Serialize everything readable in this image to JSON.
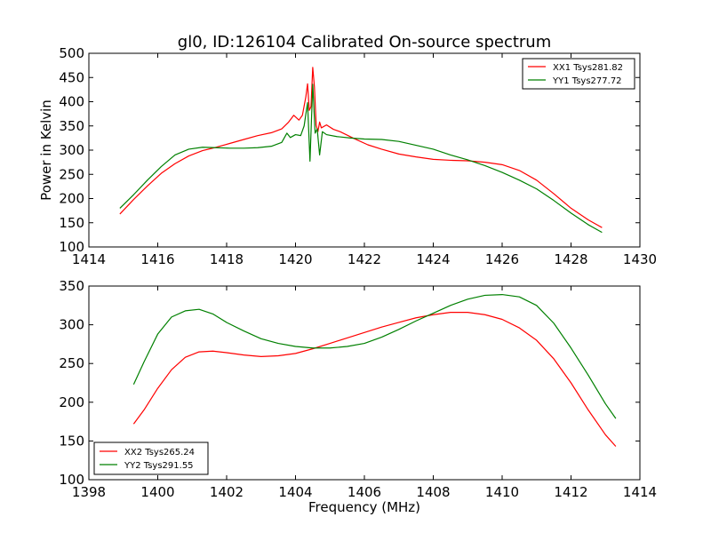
{
  "chart_data": [
    {
      "type": "line",
      "title": "gl0, ID:126104 Calibrated On-source spectrum",
      "xlabel": "",
      "ylabel": "Power in Kelvin",
      "xlim": [
        1414,
        1430
      ],
      "ylim": [
        100,
        500
      ],
      "xticks": [
        1414,
        1416,
        1418,
        1420,
        1422,
        1424,
        1426,
        1428,
        1430
      ],
      "yticks": [
        100,
        150,
        200,
        250,
        300,
        350,
        400,
        450,
        500
      ],
      "legend_position": "top-right",
      "series": [
        {
          "name": "XX1 Tsys281.82",
          "color": "#ff0000",
          "points": [
            [
              1414.9,
              168
            ],
            [
              1415.3,
              198
            ],
            [
              1415.7,
              226
            ],
            [
              1416.1,
              252
            ],
            [
              1416.5,
              272
            ],
            [
              1416.9,
              288
            ],
            [
              1417.3,
              299
            ],
            [
              1417.7,
              306
            ],
            [
              1418.1,
              314
            ],
            [
              1418.5,
              322
            ],
            [
              1418.9,
              330
            ],
            [
              1419.3,
              336
            ],
            [
              1419.6,
              344
            ],
            [
              1419.8,
              358
            ],
            [
              1419.95,
              372
            ],
            [
              1420.1,
              362
            ],
            [
              1420.2,
              372
            ],
            [
              1420.3,
              410
            ],
            [
              1420.35,
              437
            ],
            [
              1420.4,
              382
            ],
            [
              1420.45,
              390
            ],
            [
              1420.5,
              471
            ],
            [
              1420.55,
              430
            ],
            [
              1420.6,
              352
            ],
            [
              1420.65,
              338
            ],
            [
              1420.7,
              358
            ],
            [
              1420.75,
              346
            ],
            [
              1420.9,
              352
            ],
            [
              1421.1,
              343
            ],
            [
              1421.3,
              338
            ],
            [
              1421.7,
              324
            ],
            [
              1422.1,
              311
            ],
            [
              1422.5,
              302
            ],
            [
              1423.0,
              292
            ],
            [
              1423.5,
              286
            ],
            [
              1424.0,
              281
            ],
            [
              1424.5,
              279
            ],
            [
              1425.0,
              278
            ],
            [
              1425.5,
              275
            ],
            [
              1426.0,
              270
            ],
            [
              1426.5,
              258
            ],
            [
              1427.0,
              238
            ],
            [
              1427.5,
              210
            ],
            [
              1428.0,
              180
            ],
            [
              1428.5,
              156
            ],
            [
              1428.9,
              140
            ]
          ]
        },
        {
          "name": "YY1 Tsys277.72",
          "color": "#008000",
          "points": [
            [
              1414.9,
              180
            ],
            [
              1415.3,
              208
            ],
            [
              1415.7,
              238
            ],
            [
              1416.1,
              266
            ],
            [
              1416.5,
              290
            ],
            [
              1416.9,
              302
            ],
            [
              1417.3,
              306
            ],
            [
              1417.7,
              305
            ],
            [
              1418.1,
              304
            ],
            [
              1418.5,
              304
            ],
            [
              1418.9,
              305
            ],
            [
              1419.3,
              308
            ],
            [
              1419.6,
              316
            ],
            [
              1419.75,
              335
            ],
            [
              1419.85,
              326
            ],
            [
              1420.0,
              332
            ],
            [
              1420.15,
              330
            ],
            [
              1420.25,
              350
            ],
            [
              1420.35,
              398
            ],
            [
              1420.42,
              277
            ],
            [
              1420.5,
              436
            ],
            [
              1420.57,
              335
            ],
            [
              1420.63,
              344
            ],
            [
              1420.7,
              290
            ],
            [
              1420.78,
              338
            ],
            [
              1420.9,
              332
            ],
            [
              1421.2,
              328
            ],
            [
              1421.6,
              325
            ],
            [
              1422.0,
              323
            ],
            [
              1422.5,
              322
            ],
            [
              1423.0,
              318
            ],
            [
              1423.5,
              310
            ],
            [
              1424.0,
              302
            ],
            [
              1424.5,
              290
            ],
            [
              1425.0,
              280
            ],
            [
              1425.5,
              268
            ],
            [
              1426.0,
              254
            ],
            [
              1426.5,
              238
            ],
            [
              1427.0,
              220
            ],
            [
              1427.5,
              196
            ],
            [
              1428.0,
              170
            ],
            [
              1428.5,
              146
            ],
            [
              1428.9,
              130
            ]
          ]
        }
      ]
    },
    {
      "type": "line",
      "title": "",
      "xlabel": "Frequency (MHz)",
      "ylabel": "",
      "xlim": [
        1398,
        1414
      ],
      "ylim": [
        100,
        350
      ],
      "xticks": [
        1398,
        1400,
        1402,
        1404,
        1406,
        1408,
        1410,
        1412,
        1414
      ],
      "yticks": [
        100,
        150,
        200,
        250,
        300,
        350
      ],
      "legend_position": "bottom-left",
      "series": [
        {
          "name": "XX2 Tsys265.24",
          "color": "#ff0000",
          "points": [
            [
              1399.3,
              172
            ],
            [
              1399.6,
              190
            ],
            [
              1400.0,
              218
            ],
            [
              1400.4,
              242
            ],
            [
              1400.8,
              258
            ],
            [
              1401.2,
              265
            ],
            [
              1401.6,
              266
            ],
            [
              1402.0,
              264
            ],
            [
              1402.5,
              261
            ],
            [
              1403.0,
              259
            ],
            [
              1403.5,
              260
            ],
            [
              1404.0,
              263
            ],
            [
              1404.5,
              269
            ],
            [
              1405.0,
              276
            ],
            [
              1405.5,
              283
            ],
            [
              1406.0,
              290
            ],
            [
              1406.5,
              297
            ],
            [
              1407.0,
              303
            ],
            [
              1407.5,
              309
            ],
            [
              1408.0,
              313
            ],
            [
              1408.5,
              316
            ],
            [
              1409.0,
              316
            ],
            [
              1409.5,
              313
            ],
            [
              1410.0,
              307
            ],
            [
              1410.5,
              296
            ],
            [
              1411.0,
              280
            ],
            [
              1411.5,
              256
            ],
            [
              1412.0,
              225
            ],
            [
              1412.5,
              190
            ],
            [
              1413.0,
              158
            ],
            [
              1413.3,
              143
            ]
          ]
        },
        {
          "name": "YY2 Tsys291.55",
          "color": "#008000",
          "points": [
            [
              1399.3,
              223
            ],
            [
              1399.6,
              252
            ],
            [
              1400.0,
              288
            ],
            [
              1400.4,
              310
            ],
            [
              1400.8,
              318
            ],
            [
              1401.2,
              320
            ],
            [
              1401.6,
              314
            ],
            [
              1402.0,
              303
            ],
            [
              1402.5,
              292
            ],
            [
              1403.0,
              282
            ],
            [
              1403.5,
              276
            ],
            [
              1404.0,
              272
            ],
            [
              1404.5,
              270
            ],
            [
              1405.0,
              270
            ],
            [
              1405.5,
              272
            ],
            [
              1406.0,
              276
            ],
            [
              1406.5,
              284
            ],
            [
              1407.0,
              294
            ],
            [
              1407.5,
              305
            ],
            [
              1408.0,
              315
            ],
            [
              1408.5,
              325
            ],
            [
              1409.0,
              333
            ],
            [
              1409.5,
              338
            ],
            [
              1410.0,
              339
            ],
            [
              1410.5,
              336
            ],
            [
              1411.0,
              325
            ],
            [
              1411.5,
              302
            ],
            [
              1412.0,
              270
            ],
            [
              1412.5,
              235
            ],
            [
              1413.0,
              198
            ],
            [
              1413.3,
              179
            ]
          ]
        }
      ]
    }
  ]
}
